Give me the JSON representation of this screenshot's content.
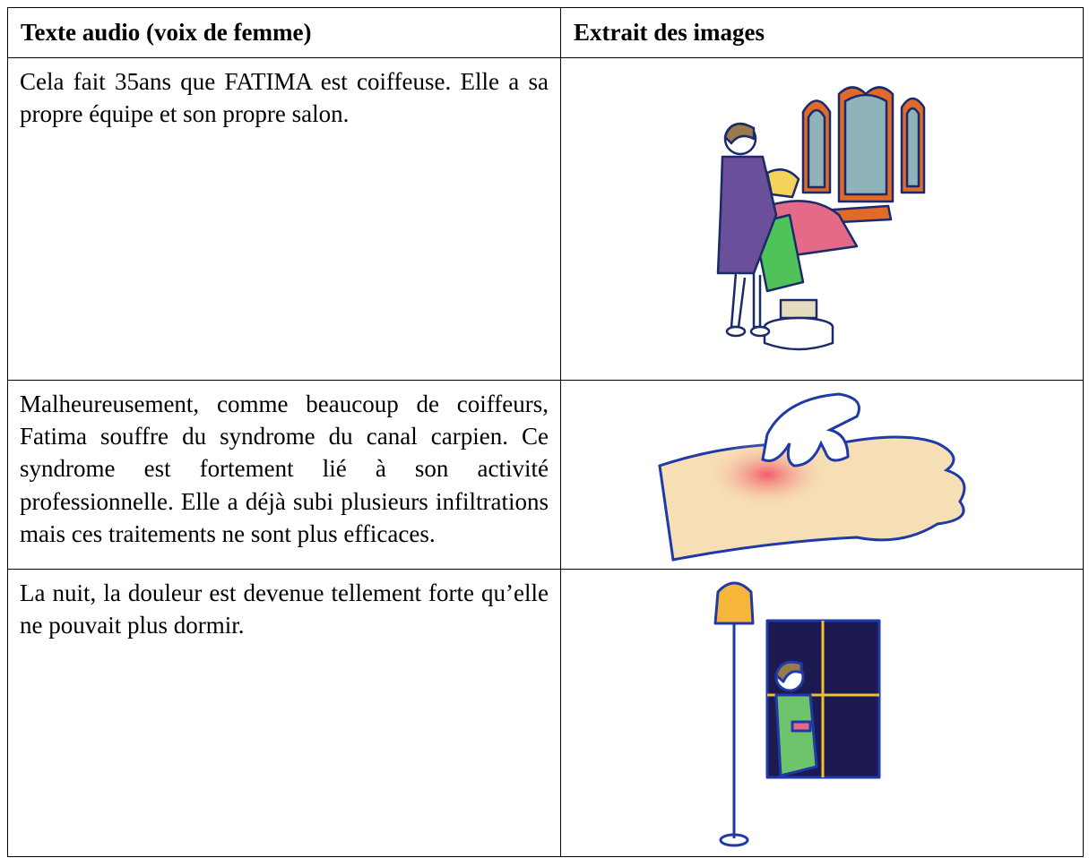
{
  "table": {
    "header": [
      "Texte audio (voix de femme)",
      "Extrait des images"
    ],
    "rows": [
      "Cela fait 35ans que FATIMA est coiffeuse. Elle a sa propre équipe et son propre salon.",
      "Malheureusement, comme beaucoup de coiffeurs, Fatima souffre du syndrome du canal carpien. Ce syndrome est fortement lié à son activité professionnelle. Elle a déjà subi plusieurs infiltrations mais ces traitements ne sont plus efficaces.",
      "La nuit, la douleur est devenue tellement forte qu’elle ne pouvait plus dormir."
    ]
  }
}
